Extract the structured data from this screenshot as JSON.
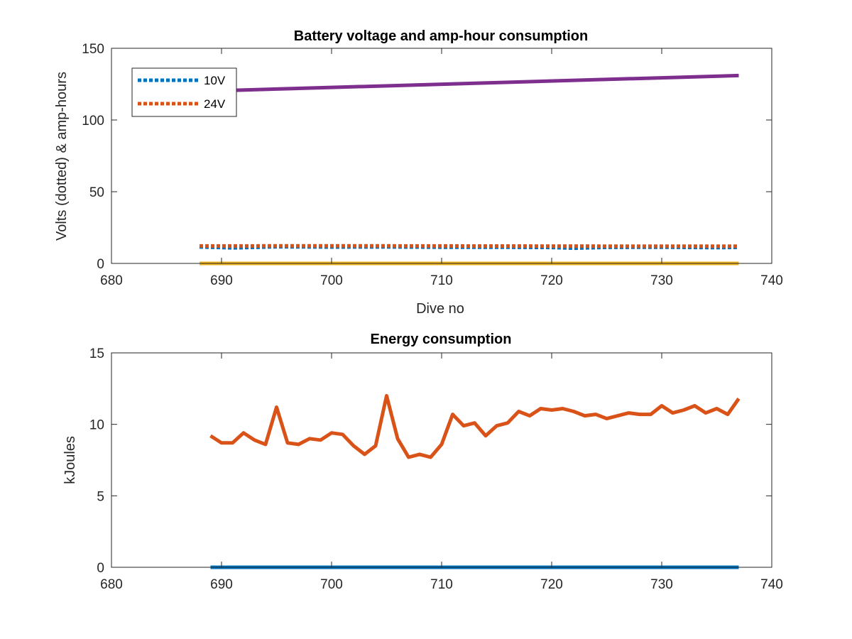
{
  "chart_data": [
    {
      "type": "line",
      "title": "Battery voltage and amp-hour consumption",
      "xlabel": "Dive no",
      "ylabel": "Volts (dotted) & amp-hours",
      "xlim": [
        680,
        740
      ],
      "ylim": [
        0,
        150
      ],
      "xticks": [
        "680",
        "690",
        "700",
        "710",
        "720",
        "730",
        "740"
      ],
      "yticks": [
        "0",
        "50",
        "100",
        "150"
      ],
      "grid": false,
      "legend_position": "top-left",
      "series": [
        {
          "name": "10V",
          "style": "dotted",
          "color": "#0072BD",
          "x": [
            688,
            691,
            695,
            700,
            705,
            710,
            715,
            720,
            722,
            725,
            730,
            735,
            737
          ],
          "y": [
            11.5,
            10.8,
            11.6,
            11.4,
            11.5,
            11.3,
            11.3,
            11.1,
            10.6,
            11.2,
            11.3,
            11.0,
            11.2
          ]
        },
        {
          "name": "24V",
          "style": "dotted",
          "color": "#D95319",
          "x": [
            688,
            700,
            710,
            720,
            730,
            737
          ],
          "y": [
            12.2,
            12.3,
            12.2,
            12.1,
            12.0,
            12.0
          ]
        },
        {
          "style": "solid",
          "color": "#7E2F8E",
          "x": [
            688,
            737
          ],
          "y": [
            120,
            131
          ]
        },
        {
          "style": "solid",
          "color": "#EDB120",
          "x": [
            688,
            737
          ],
          "y": [
            0,
            0
          ]
        }
      ]
    },
    {
      "type": "line",
      "title": "Energy consumption",
      "xlabel": "",
      "ylabel": "kJoules",
      "xlim": [
        680,
        740
      ],
      "ylim": [
        0,
        15
      ],
      "xticks": [
        "680",
        "690",
        "700",
        "710",
        "720",
        "730",
        "740"
      ],
      "yticks": [
        "0",
        "5",
        "10",
        "15"
      ],
      "grid": false,
      "series": [
        {
          "style": "solid",
          "color": "#D95319",
          "x": [
            689,
            690,
            691,
            692,
            693,
            694,
            695,
            696,
            697,
            698,
            699,
            700,
            701,
            702,
            703,
            704,
            705,
            706,
            707,
            708,
            709,
            710,
            711,
            712,
            713,
            714,
            715,
            716,
            717,
            718,
            719,
            720,
            721,
            722,
            723,
            724,
            725,
            726,
            727,
            728,
            729,
            730,
            731,
            732,
            733,
            734,
            735,
            736,
            737
          ],
          "y": [
            9.2,
            8.7,
            8.7,
            9.4,
            8.9,
            8.6,
            11.2,
            8.7,
            8.6,
            9.0,
            8.9,
            9.4,
            9.3,
            8.5,
            7.9,
            8.5,
            12.0,
            9.0,
            7.7,
            7.9,
            7.7,
            8.6,
            10.7,
            9.9,
            10.1,
            9.2,
            9.9,
            10.1,
            10.9,
            10.6,
            11.1,
            11.0,
            11.1,
            10.9,
            10.6,
            10.7,
            10.4,
            10.6,
            10.8,
            10.7,
            10.7,
            11.3,
            10.8,
            11.0,
            11.3,
            10.8,
            11.1,
            10.7,
            11.8
          ]
        },
        {
          "style": "solid",
          "color": "#0072BD",
          "x": [
            689,
            737
          ],
          "y": [
            0,
            0
          ]
        }
      ]
    }
  ]
}
